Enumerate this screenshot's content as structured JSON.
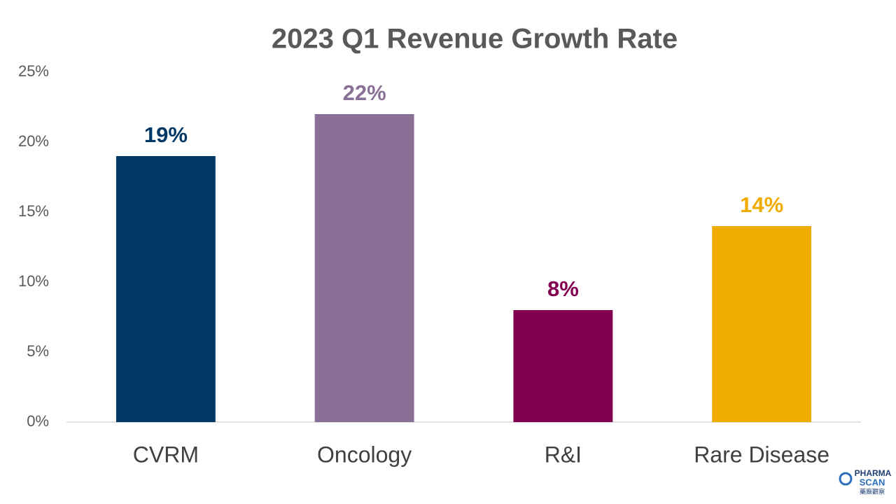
{
  "chart_data": {
    "type": "bar",
    "title": "2023 Q1 Revenue Growth Rate",
    "categories": [
      "CVRM",
      "Oncology",
      "R&I",
      "Rare Disease"
    ],
    "values": [
      19,
      22,
      8,
      14
    ],
    "value_labels": [
      "19%",
      "22%",
      "8%",
      "14%"
    ],
    "colors": [
      "#003865",
      "#8a7097",
      "#830051",
      "#f0ab00"
    ],
    "ylim": [
      0,
      25
    ],
    "yticks": [
      {
        "value": 0,
        "label": "0%"
      },
      {
        "value": 5,
        "label": "5%"
      },
      {
        "value": 10,
        "label": "10%"
      },
      {
        "value": 15,
        "label": "15%"
      },
      {
        "value": 20,
        "label": "20%"
      },
      {
        "value": 25,
        "label": "25%"
      }
    ],
    "grid": false
  },
  "logo": {
    "line1": "PHARMA",
    "line2": "SCAN",
    "line3": "藥廠觀察"
  }
}
